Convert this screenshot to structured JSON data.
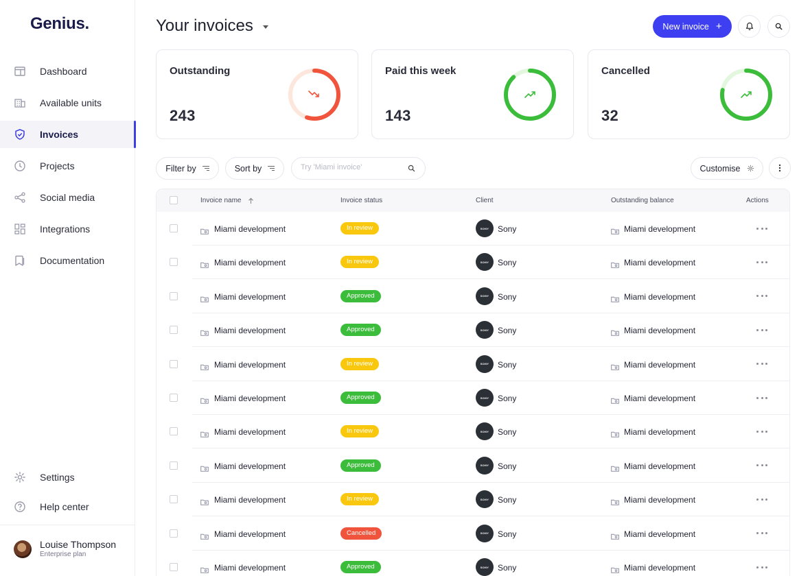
{
  "app": {
    "logo": "Genius."
  },
  "sidebar": {
    "items": [
      {
        "label": "Dashboard",
        "icon": "window-icon",
        "active": false
      },
      {
        "label": "Available units",
        "icon": "building-icon",
        "active": false
      },
      {
        "label": "Invoices",
        "icon": "shield-icon",
        "active": true
      },
      {
        "label": "Projects",
        "icon": "clock-icon",
        "active": false
      },
      {
        "label": "Social media",
        "icon": "share-icon",
        "active": false
      },
      {
        "label": "Integrations",
        "icon": "grid-icon",
        "active": false
      },
      {
        "label": "Documentation",
        "icon": "bookmark-icon",
        "active": false
      }
    ],
    "bottom_items": [
      {
        "label": "Settings",
        "icon": "gear-icon"
      },
      {
        "label": "Help center",
        "icon": "help-icon"
      }
    ],
    "user": {
      "name": "Louise Thompson",
      "plan": "Enterprise plan"
    }
  },
  "header": {
    "title": "Your invoices",
    "new_invoice_label": "New invoice",
    "new_invoice_icon": "plus-icon",
    "bell_icon": "bell-icon",
    "search_icon": "search-icon"
  },
  "stats": [
    {
      "title": "Outstanding",
      "value": "243",
      "trend": "down",
      "progress": 0.55,
      "color": "#f0543c",
      "track": "#fde6dc"
    },
    {
      "title": "Paid this week",
      "value": "143",
      "trend": "up",
      "progress": 0.88,
      "color": "#3bbd3b",
      "track": "#e3f7df"
    },
    {
      "title": "Cancelled",
      "value": "32",
      "trend": "up",
      "progress": 0.78,
      "color": "#3bbd3b",
      "track": "#e3f7df"
    }
  ],
  "toolbar": {
    "filter_label": "Filter by",
    "sort_label": "Sort by",
    "search_placeholder": "Try 'Miami invoice'",
    "customise_label": "Customise"
  },
  "table": {
    "columns": [
      "Invoice name",
      "Invoice status",
      "Client",
      "Outstanding balance",
      "Actions"
    ],
    "status_colors": {
      "In review": "#f9c80e",
      "Approved": "#3bbd3b",
      "Cancelled": "#f0543c"
    },
    "rows": [
      {
        "name": "Miami development",
        "status": "In review",
        "client": "Sony",
        "client_logo": "SONY",
        "balance": "Miami development"
      },
      {
        "name": "Miami development",
        "status": "In review",
        "client": "Sony",
        "client_logo": "SONY",
        "balance": "Miami development"
      },
      {
        "name": "Miami development",
        "status": "Approved",
        "client": "Sony",
        "client_logo": "SONY",
        "balance": "Miami development"
      },
      {
        "name": "Miami development",
        "status": "Approved",
        "client": "Sony",
        "client_logo": "SONY",
        "balance": "Miami development"
      },
      {
        "name": "Miami development",
        "status": "In review",
        "client": "Sony",
        "client_logo": "SONY",
        "balance": "Miami development"
      },
      {
        "name": "Miami development",
        "status": "Approved",
        "client": "Sony",
        "client_logo": "SONY",
        "balance": "Miami development"
      },
      {
        "name": "Miami development",
        "status": "In review",
        "client": "Sony",
        "client_logo": "SONY",
        "balance": "Miami development"
      },
      {
        "name": "Miami development",
        "status": "Approved",
        "client": "Sony",
        "client_logo": "SONY",
        "balance": "Miami development"
      },
      {
        "name": "Miami development",
        "status": "In review",
        "client": "Sony",
        "client_logo": "SONY",
        "balance": "Miami development"
      },
      {
        "name": "Miami development",
        "status": "Cancelled",
        "client": "Sony",
        "client_logo": "SONY",
        "balance": "Miami development"
      },
      {
        "name": "Miami development",
        "status": "Approved",
        "client": "Sony",
        "client_logo": "SONY",
        "balance": "Miami development"
      }
    ]
  }
}
